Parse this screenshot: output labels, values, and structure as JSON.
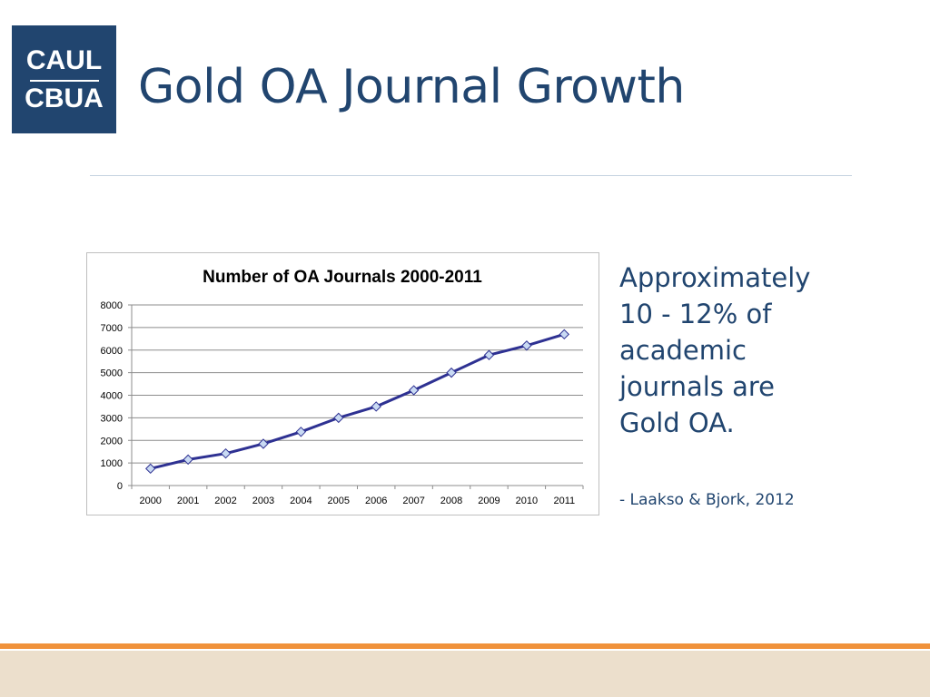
{
  "logo": {
    "line1": "CAUL",
    "line2": "CBUA"
  },
  "slide": {
    "title": "Gold OA Journal Growth"
  },
  "side_text": {
    "lines": [
      "Approximately",
      "10 - 12% of",
      "academic",
      "journals are",
      "Gold OA."
    ],
    "citation": "- Laakso & Bjork, 2012"
  },
  "colors": {
    "title": "#21456f",
    "logo_bg": "#21456f",
    "line": "#2e3192",
    "marker_fill": "#c9daf3",
    "marker_stroke": "#2e3192",
    "footer_orange": "#f0923b",
    "footer_beige": "#ecdfcc"
  },
  "chart_data": {
    "type": "line",
    "title": "Number of OA Journals 2000-2011",
    "x": [
      "2000",
      "2001",
      "2002",
      "2003",
      "2004",
      "2005",
      "2006",
      "2007",
      "2008",
      "2009",
      "2010",
      "2011"
    ],
    "series": [
      {
        "values": [
          750,
          1150,
          1420,
          1850,
          2380,
          3000,
          3500,
          4220,
          5000,
          5780,
          6200,
          6700
        ]
      }
    ],
    "y_ticks": [
      "0",
      "1000",
      "2000",
      "3000",
      "4000",
      "5000",
      "6000",
      "7000",
      "8000"
    ],
    "ylim": [
      0,
      8000
    ],
    "xlabel": "",
    "ylabel": "",
    "grid": true,
    "legend": "none",
    "marker": "diamond"
  }
}
